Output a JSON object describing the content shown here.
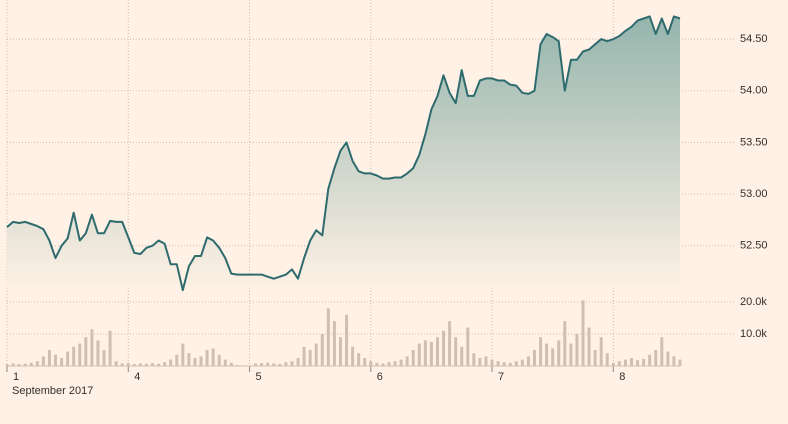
{
  "chart_data": [
    {
      "type": "line",
      "color": "#2e6b6e",
      "xlabel": "September 2017",
      "x": [
        0,
        0.05,
        0.1,
        0.15,
        0.2,
        0.25,
        0.3,
        0.35,
        0.4,
        0.45,
        0.5,
        0.55,
        0.6,
        0.65,
        0.7,
        0.75,
        0.8,
        0.85,
        0.9,
        0.95,
        1,
        1.05,
        1.1,
        1.15,
        1.2,
        1.25,
        1.3,
        1.35,
        1.4,
        1.45,
        1.5,
        1.55,
        1.6,
        1.65,
        1.7,
        1.75,
        1.8,
        1.85,
        1.9,
        1.95,
        2,
        2.05,
        2.1,
        2.15,
        2.2,
        2.25,
        2.3,
        2.35,
        2.4,
        2.45,
        2.5,
        2.55,
        2.6,
        2.65,
        2.7,
        2.75,
        2.8,
        2.85,
        2.9,
        2.95,
        3,
        3.05,
        3.1,
        3.15,
        3.2,
        3.25,
        3.3,
        3.35,
        3.4,
        3.45,
        3.5,
        3.55,
        3.6,
        3.65,
        3.7,
        3.75,
        3.8,
        3.85,
        3.9,
        3.95,
        4,
        4.05,
        4.1,
        4.15,
        4.2,
        4.25,
        4.3,
        4.35,
        4.4,
        4.45,
        4.5,
        4.55,
        4.6,
        4.65,
        4.7,
        4.75,
        4.8,
        4.85,
        4.9,
        4.95,
        5,
        5.05,
        5.1,
        5.15,
        5.2,
        5.25,
        5.3,
        5.35,
        5.4,
        5.45,
        5.5,
        5.55
      ],
      "values": [
        52.68,
        52.73,
        52.72,
        52.73,
        52.71,
        52.69,
        52.66,
        52.55,
        52.38,
        52.5,
        52.57,
        52.82,
        52.55,
        52.62,
        52.8,
        52.62,
        52.62,
        52.74,
        52.73,
        52.73,
        52.58,
        52.43,
        52.42,
        52.48,
        52.5,
        52.55,
        52.52,
        52.32,
        52.32,
        52.07,
        52.3,
        52.4,
        52.4,
        52.58,
        52.55,
        52.48,
        52.38,
        52.23,
        52.22,
        52.22,
        52.22,
        52.22,
        52.22,
        52.2,
        52.18,
        52.2,
        52.22,
        52.27,
        52.18,
        52.38,
        52.55,
        52.65,
        52.6,
        53.05,
        53.25,
        53.42,
        53.5,
        53.32,
        53.22,
        53.2,
        53.2,
        53.18,
        53.15,
        53.15,
        53.16,
        53.16,
        53.2,
        53.25,
        53.38,
        53.58,
        53.82,
        53.95,
        54.15,
        53.98,
        53.88,
        54.2,
        53.95,
        53.95,
        54.1,
        54.12,
        54.12,
        54.1,
        54.1,
        54.06,
        54.05,
        53.98,
        53.97,
        54.0,
        54.45,
        54.55,
        54.52,
        54.48,
        54.0,
        54.3,
        54.3,
        54.38,
        54.4,
        54.45,
        54.5,
        54.48,
        54.5,
        54.53,
        54.58,
        54.62,
        54.68,
        54.7,
        54.72,
        54.55,
        54.7,
        54.55,
        54.72,
        54.7
      ],
      "xlim": [
        0,
        5.55
      ],
      "xticks": [
        {
          "value": 0,
          "label": "1"
        },
        {
          "value": 1,
          "label": "4"
        },
        {
          "value": 2,
          "label": "5"
        },
        {
          "value": 3,
          "label": "6"
        },
        {
          "value": 4,
          "label": "7"
        },
        {
          "value": 5,
          "label": "8"
        }
      ],
      "ylim": [
        52.1,
        54.85
      ],
      "yticks": [
        {
          "value": 52.5,
          "label": "52.50"
        },
        {
          "value": 53,
          "label": "53.00"
        },
        {
          "value": 53.5,
          "label": "53.50"
        },
        {
          "value": 54,
          "label": "54.00"
        },
        {
          "value": 54.5,
          "label": "54.50"
        }
      ],
      "grid": true
    },
    {
      "type": "bar",
      "color": "#cdbfb2",
      "x": [
        0,
        0.05,
        0.1,
        0.15,
        0.2,
        0.25,
        0.3,
        0.35,
        0.4,
        0.45,
        0.5,
        0.55,
        0.6,
        0.65,
        0.7,
        0.75,
        0.8,
        0.85,
        0.9,
        0.95,
        1,
        1.05,
        1.1,
        1.15,
        1.2,
        1.25,
        1.3,
        1.35,
        1.4,
        1.45,
        1.5,
        1.55,
        1.6,
        1.65,
        1.7,
        1.75,
        1.8,
        1.85,
        1.9,
        1.95,
        2,
        2.05,
        2.1,
        2.15,
        2.2,
        2.25,
        2.3,
        2.35,
        2.4,
        2.45,
        2.5,
        2.55,
        2.6,
        2.65,
        2.7,
        2.75,
        2.8,
        2.85,
        2.9,
        2.95,
        3,
        3.05,
        3.1,
        3.15,
        3.2,
        3.25,
        3.3,
        3.35,
        3.4,
        3.45,
        3.5,
        3.55,
        3.6,
        3.65,
        3.7,
        3.75,
        3.8,
        3.85,
        3.9,
        3.95,
        4,
        4.05,
        4.1,
        4.15,
        4.2,
        4.25,
        4.3,
        4.35,
        4.4,
        4.45,
        4.5,
        4.55,
        4.6,
        4.65,
        4.7,
        4.75,
        4.8,
        4.85,
        4.9,
        4.95,
        5,
        5.05,
        5.1,
        5.15,
        5.2,
        5.25,
        5.3,
        5.35,
        5.4,
        5.45,
        5.5,
        5.55
      ],
      "values": [
        500,
        800,
        600,
        700,
        1000,
        1500,
        3000,
        5000,
        3500,
        2500,
        4500,
        6000,
        7000,
        9000,
        11500,
        8000,
        5000,
        11000,
        1500,
        800,
        1000,
        600,
        800,
        700,
        900,
        700,
        1200,
        2000,
        3500,
        7000,
        4000,
        2500,
        3000,
        5000,
        5500,
        3500,
        2000,
        1000,
        300,
        200,
        200,
        800,
        900,
        1000,
        800,
        700,
        1200,
        1500,
        2500,
        6000,
        5000,
        7000,
        10000,
        18000,
        14000,
        9000,
        16000,
        6000,
        4000,
        2500,
        1500,
        1000,
        800,
        1200,
        1500,
        2000,
        3000,
        5000,
        7000,
        8000,
        7500,
        9000,
        11000,
        14000,
        9000,
        6000,
        12000,
        4000,
        2500,
        3000,
        2000,
        1500,
        1200,
        1000,
        1500,
        2000,
        3000,
        5000,
        9000,
        7000,
        5500,
        8000,
        14000,
        7000,
        10000,
        20500,
        12000,
        5000,
        9000,
        4000,
        1000,
        1500,
        2000,
        2500,
        1800,
        2200,
        3500,
        5000,
        9000,
        4500,
        3000,
        2000
      ],
      "xlim": [
        0,
        5.55
      ],
      "ylim": [
        0,
        21000
      ],
      "yticks": [
        {
          "value": 10000,
          "label": "10.0k"
        },
        {
          "value": 20000,
          "label": "20.0k"
        }
      ],
      "grid": true
    }
  ]
}
